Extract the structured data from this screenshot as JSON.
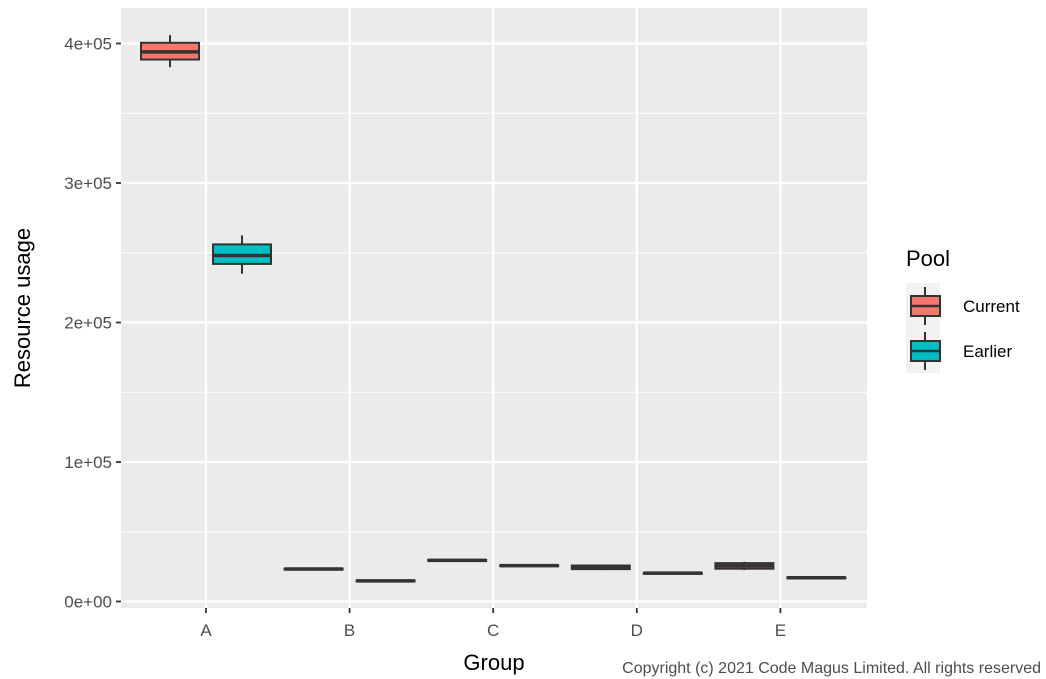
{
  "chart_data": {
    "type": "boxplot",
    "xlabel": "Group",
    "ylabel": "Resource usage",
    "categories": [
      "A",
      "B",
      "C",
      "D",
      "E"
    ],
    "ylim": [
      -10000,
      408000
    ],
    "yticks": [
      {
        "value": 0,
        "label": "0e+00"
      },
      {
        "value": 100000,
        "label": "1e+05"
      },
      {
        "value": 200000,
        "label": "2e+05"
      },
      {
        "value": 300000,
        "label": "3e+05"
      },
      {
        "value": 400000,
        "label": "4e+05"
      }
    ],
    "grid": true,
    "legend": {
      "title": "Pool",
      "position": "right"
    },
    "series": [
      {
        "name": "Current",
        "color": "#F8766D",
        "boxes": [
          {
            "category": "A",
            "min": 383000,
            "q1": 388500,
            "median": 394000,
            "q3": 400500,
            "max": 406000
          },
          {
            "category": "B",
            "min": 22800,
            "q1": 23000,
            "median": 23300,
            "q3": 23600,
            "max": 23800
          },
          {
            "category": "C",
            "min": 29000,
            "q1": 29200,
            "median": 29500,
            "q3": 29800,
            "max": 30000
          },
          {
            "category": "D",
            "min": 22500,
            "q1": 23200,
            "median": 24500,
            "q3": 25800,
            "max": 26500
          },
          {
            "category": "E",
            "min": 22500,
            "q1": 23500,
            "median": 25500,
            "q3": 27500,
            "max": 28500
          }
        ]
      },
      {
        "name": "Earlier",
        "color": "#00BFC4",
        "boxes": [
          {
            "category": "A",
            "min": 235000,
            "q1": 242000,
            "median": 248000,
            "q3": 256000,
            "max": 262500
          },
          {
            "category": "B",
            "min": 14300,
            "q1": 14500,
            "median": 14800,
            "q3": 15100,
            "max": 15300
          },
          {
            "category": "C",
            "min": 25200,
            "q1": 25400,
            "median": 25700,
            "q3": 26000,
            "max": 26200
          },
          {
            "category": "D",
            "min": 19800,
            "q1": 20000,
            "median": 20300,
            "q3": 20600,
            "max": 20800
          },
          {
            "category": "E",
            "min": 16500,
            "q1": 16700,
            "median": 17000,
            "q3": 17300,
            "max": 17500
          }
        ]
      }
    ]
  },
  "caption": "Copyright (c) 2021 Code Magus Limited. All rights reserved"
}
